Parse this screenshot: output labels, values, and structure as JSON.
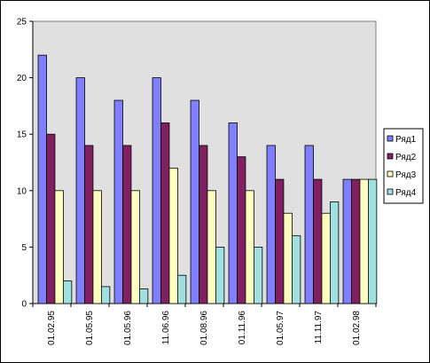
{
  "chart_data": {
    "type": "bar",
    "categories": [
      "01.02.95",
      "01.05.95",
      "01.05.96",
      "11.06.96",
      "01.08.96",
      "01.11.96",
      "01.05.97",
      "11.11.97",
      "01.02.98"
    ],
    "series": [
      {
        "name": "Ряд1",
        "color": "#8080FF",
        "values": [
          22,
          20,
          18,
          20,
          18,
          16,
          14,
          14,
          11
        ]
      },
      {
        "name": "Ряд2",
        "color": "#802060",
        "values": [
          15,
          14,
          14,
          16,
          14,
          13,
          11,
          11,
          11
        ]
      },
      {
        "name": "Ряд3",
        "color": "#FFFFC0",
        "values": [
          10,
          10,
          10,
          12,
          10,
          10,
          8,
          8,
          11
        ]
      },
      {
        "name": "Ряд4",
        "color": "#A0E0E0",
        "values": [
          2,
          1.5,
          1.3,
          2.5,
          5,
          5,
          6,
          9,
          11
        ]
      }
    ],
    "yticks": [
      0,
      5,
      10,
      15,
      20,
      25
    ],
    "ylim": [
      0,
      25
    ],
    "title": "",
    "xlabel": "",
    "ylabel": "",
    "grid": false,
    "legend_position": "right",
    "plot_background": "#E0E0E0"
  }
}
